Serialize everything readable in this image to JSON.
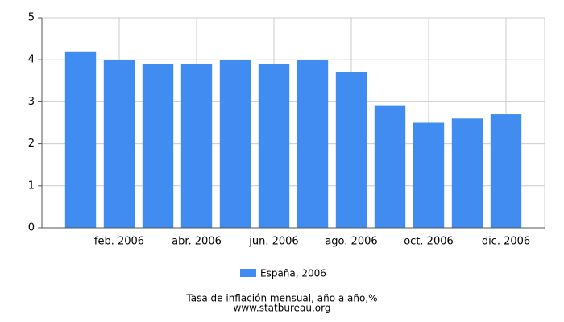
{
  "chart_data": {
    "type": "bar",
    "title": "Tasa de inflación mensual, año a año,%",
    "subtitle": "www.statbureau.org",
    "categories": [
      null,
      "feb. 2006",
      null,
      "abr. 2006",
      null,
      "jun. 2006",
      null,
      "ago. 2006",
      null,
      "oct. 2006",
      null,
      "dic. 2006"
    ],
    "series": [
      {
        "name": "España, 2006",
        "color": "#418cf0",
        "values": [
          4.2,
          4.0,
          3.9,
          3.9,
          4.0,
          3.9,
          4.0,
          3.7,
          2.9,
          2.5,
          2.6,
          2.7
        ]
      }
    ],
    "ylim": [
      0,
      5
    ],
    "yticks": [
      0,
      1,
      2,
      3,
      4,
      5
    ],
    "grid": true
  }
}
